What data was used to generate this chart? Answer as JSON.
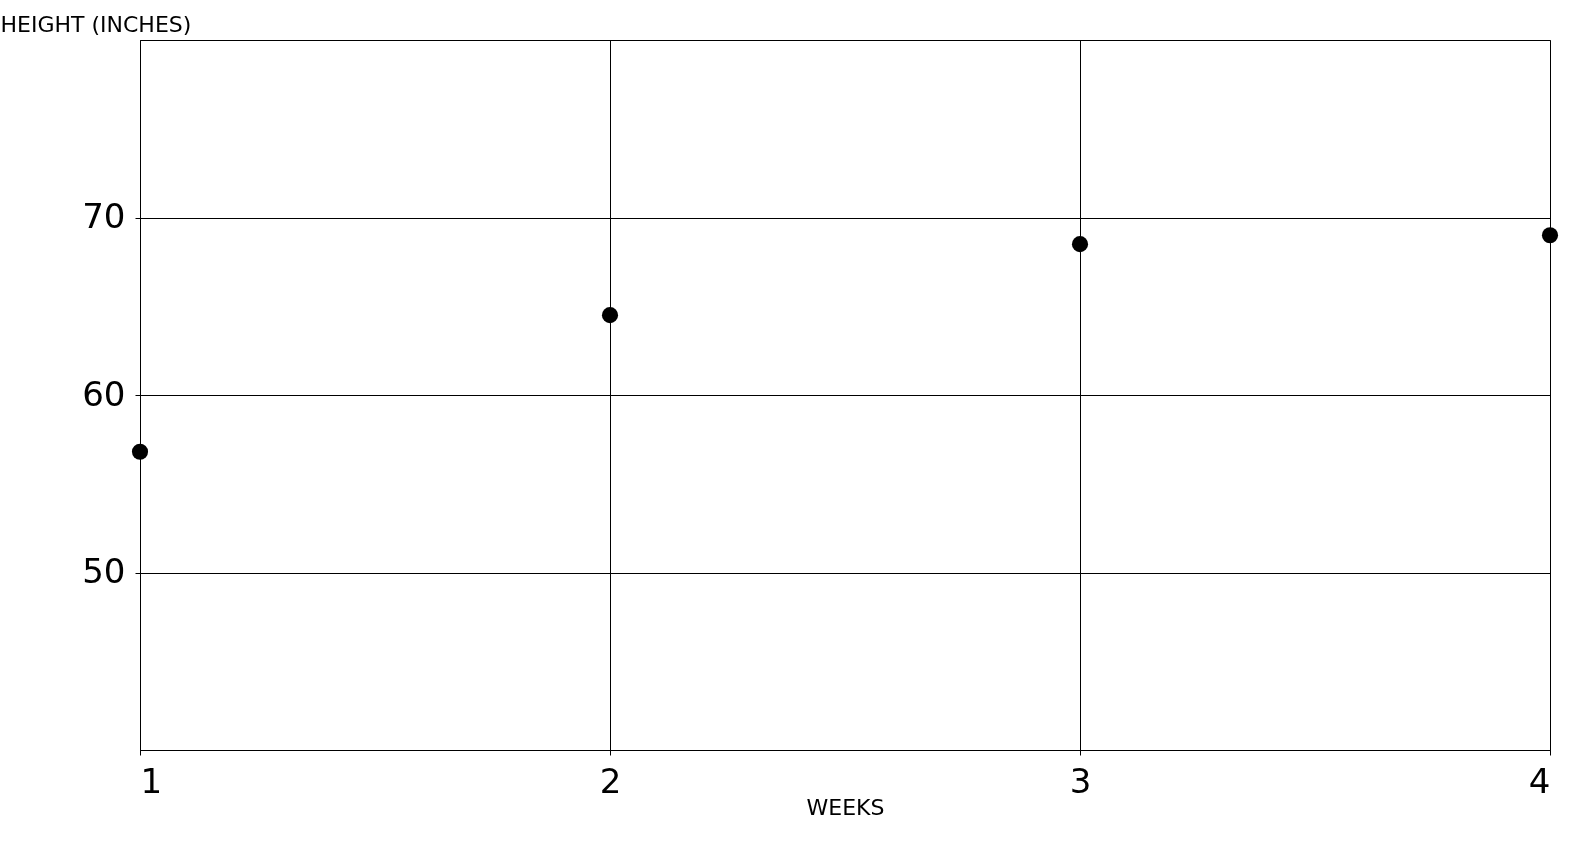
{
  "chart_data": {
    "type": "scatter",
    "xlabel": "WEEKS",
    "ylabel": "HEIGHT (INCHES)",
    "x": [
      1,
      2,
      3,
      4
    ],
    "series": [
      {
        "color": "#000000",
        "values": [
          56.8,
          64.5,
          68.5,
          69.0
        ]
      }
    ],
    "xlim": [
      1,
      4
    ],
    "xticks": [
      1,
      2,
      3,
      4
    ],
    "ylim": [
      40,
      80
    ],
    "yticks": [
      50,
      60,
      70
    ],
    "grid": true,
    "marker": "circle"
  }
}
